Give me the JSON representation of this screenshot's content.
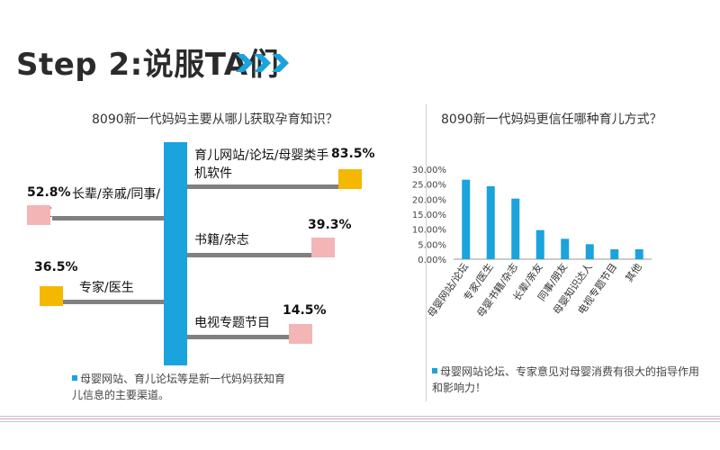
{
  "title": "Step 2:说服TA们",
  "colors": {
    "accent_blue": "#1aa3dc",
    "orange": "#f5b800",
    "pink": "#f3b5b5",
    "grey_line": "#808080"
  },
  "left_chart": {
    "question": "8090新一代妈妈主要从哪儿获取孕育知识？",
    "note": "母婴网站、育儿论坛等是新一代妈妈获知育儿信息的主要渠道。"
  },
  "right_chart": {
    "question": "8090新一代妈妈更信任哪种育儿方式？",
    "note": "母婴网站论坛、专家意见对母婴消费有很大的指导作用和影响力！"
  },
  "chart_data": [
    {
      "type": "bar",
      "categories": [
        "育儿网站/论坛/母婴类手机软件",
        "书籍/杂志",
        "电视专题节目",
        "长辈/亲戚/同事/朋友",
        "专家/医生"
      ],
      "values": [
        83.5,
        39.3,
        14.5,
        52.8,
        36.5
      ],
      "value_labels": [
        "83.5%",
        "39.3%",
        "14.5%",
        "52.8%",
        "36.5%"
      ],
      "title": "8090新一代妈妈主要从哪儿获取孕育知识？",
      "xlabel": "",
      "ylabel": "",
      "unit": "%"
    },
    {
      "type": "bar",
      "categories": [
        "母婴网站/论坛",
        "专家/医生",
        "母婴书籍/杂志",
        "长辈/亲友",
        "同事/朋友",
        "母婴知识达人",
        "电视专题节目",
        "其他"
      ],
      "values": [
        26.5,
        24.3,
        20.2,
        9.7,
        6.8,
        5.0,
        3.3,
        3.3
      ],
      "title": "8090新一代妈妈更信任哪种育儿方式？",
      "xlabel": "",
      "ylabel": "",
      "ylim": [
        0,
        30
      ],
      "yticks": [
        "0.00%",
        "5.00%",
        "10.00%",
        "15.00%",
        "20.00%",
        "25.00%",
        "30.00%"
      ],
      "grid": false,
      "legend": "none"
    }
  ]
}
